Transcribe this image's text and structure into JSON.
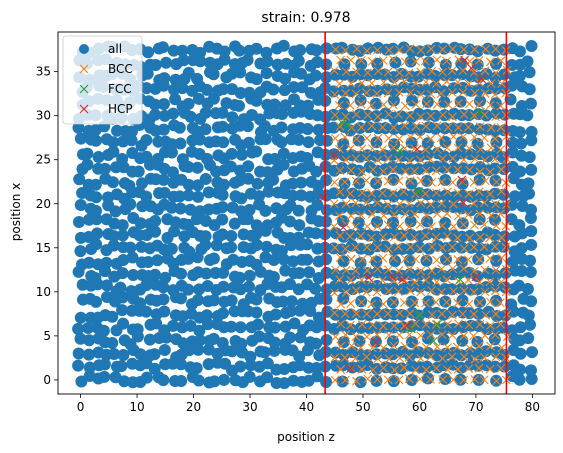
{
  "chart_data": {
    "type": "scatter",
    "title": "strain: 0.978",
    "xlabel": "position z",
    "ylabel": "position x",
    "xlim": [
      -4,
      84
    ],
    "ylim": [
      -1.6,
      39.5
    ],
    "xticks": [
      0,
      10,
      20,
      30,
      40,
      50,
      60,
      70,
      80
    ],
    "yticks": [
      0,
      5,
      10,
      15,
      20,
      25,
      30,
      35
    ],
    "grid": false,
    "legend_position": "top-left",
    "series": [
      {
        "name": "all",
        "marker": "circle",
        "color": "#1f77b4",
        "x_range": [
          0,
          80
        ],
        "y_range": [
          0,
          38
        ],
        "x_spacing": 1.5,
        "y_spacing": 1.5,
        "dense_region_x": [
          0,
          43
        ],
        "lattice_region_x": [
          43,
          76
        ],
        "dense_region_right_x": [
          76,
          80
        ]
      },
      {
        "name": "BCC",
        "marker": "x",
        "color": "#ff7f0e",
        "x_range": [
          45,
          76
        ],
        "y_range": [
          0,
          38
        ],
        "x_spacing": 1.9,
        "y_spacing": 1.25
      },
      {
        "name": "FCC",
        "marker": "x",
        "color": "#2ca02c",
        "points": [
          [
            46.3,
            29.2
          ],
          [
            47.4,
            28.9
          ],
          [
            56.5,
            26.0
          ],
          [
            59.8,
            21.4
          ],
          [
            62.5,
            4.4
          ],
          [
            63.2,
            6.3
          ],
          [
            67.2,
            11.4
          ],
          [
            58.6,
            5.8
          ],
          [
            70.8,
            30.4
          ],
          [
            60.0,
            7.4
          ]
        ]
      },
      {
        "name": "HCP",
        "marker": "x",
        "color": "#d62728",
        "points": [
          [
            68.0,
            36.3
          ],
          [
            69.2,
            35.4
          ],
          [
            43.1,
            24.0
          ],
          [
            43.0,
            20.7
          ],
          [
            46.5,
            17.3
          ],
          [
            51.0,
            11.6
          ],
          [
            55.2,
            11.7
          ],
          [
            57.0,
            11.4
          ],
          [
            52.3,
            4.3
          ],
          [
            47.8,
            1.3
          ],
          [
            57.8,
            6.2
          ],
          [
            67.8,
            20.1
          ],
          [
            67.5,
            22.7
          ],
          [
            70.0,
            11.7
          ],
          [
            59.6,
            26.2
          ],
          [
            44.9,
            25.6
          ],
          [
            71.0,
            34.2
          ]
        ]
      }
    ],
    "vertical_lines": {
      "color": "#ff0000",
      "x": [
        43.3,
        75.4
      ]
    }
  }
}
